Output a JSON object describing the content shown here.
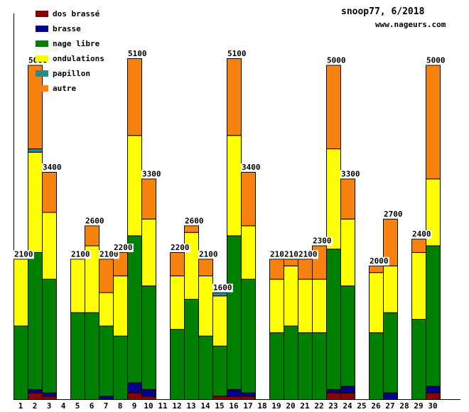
{
  "header": {
    "title": "snoop77, 6/2018",
    "site": "www.nageurs.com"
  },
  "legend": [
    {
      "label": "dos brassé",
      "color": "#8b0000"
    },
    {
      "label": "brasse",
      "color": "#00008b"
    },
    {
      "label": "nage libre",
      "color": "#008000"
    },
    {
      "label": "ondulations",
      "color": "#ffff00"
    },
    {
      "label": "papillon",
      "color": "#1f8f8f"
    },
    {
      "label": "autre",
      "color": "#f8820f"
    }
  ],
  "chart_data": {
    "type": "bar",
    "stacked": true,
    "title": "snoop77, 6/2018",
    "xlabel": "",
    "ylabel": "",
    "ylim": [
      0,
      5770
    ],
    "grid": false,
    "legend_position": "top-left",
    "axis_color": "#000000",
    "label_background": "#ffffff",
    "categories": [
      "1",
      "2",
      "3",
      "4",
      "5",
      "6",
      "7",
      "8",
      "9",
      "10",
      "11",
      "12",
      "13",
      "14",
      "15",
      "16",
      "17",
      "18",
      "19",
      "20",
      "21",
      "22",
      "23",
      "24",
      "25",
      "26",
      "27",
      "28",
      "29",
      "30"
    ],
    "totals": [
      2100,
      5000,
      3400,
      0,
      2100,
      2600,
      2100,
      2200,
      5100,
      3300,
      0,
      2200,
      2600,
      2100,
      1600,
      5100,
      3400,
      0,
      2100,
      2100,
      2100,
      2300,
      5000,
      3300,
      0,
      2000,
      2700,
      0,
      2400,
      5000
    ],
    "series": [
      {
        "name": "dos brassé",
        "color": "#8b0000",
        "values": [
          0,
          100,
          50,
          0,
          0,
          0,
          0,
          0,
          100,
          50,
          0,
          0,
          0,
          0,
          50,
          50,
          50,
          0,
          0,
          0,
          0,
          0,
          100,
          100,
          0,
          0,
          0,
          0,
          0,
          100
        ]
      },
      {
        "name": "brasse",
        "color": "#00008b",
        "values": [
          0,
          50,
          50,
          0,
          0,
          0,
          50,
          0,
          150,
          100,
          0,
          0,
          0,
          0,
          0,
          100,
          50,
          0,
          0,
          0,
          0,
          0,
          50,
          100,
          0,
          0,
          100,
          0,
          0,
          100
        ]
      },
      {
        "name": "nage libre",
        "color": "#008000",
        "values": [
          1100,
          2050,
          1700,
          0,
          1300,
          1300,
          1050,
          950,
          2200,
          1550,
          0,
          1050,
          1500,
          950,
          750,
          2300,
          1700,
          0,
          1000,
          1100,
          1000,
          1000,
          2100,
          1500,
          0,
          1000,
          1200,
          0,
          1200,
          2100
        ]
      },
      {
        "name": "ondulations",
        "color": "#ffff00",
        "values": [
          1000,
          1500,
          1000,
          0,
          800,
          1000,
          500,
          900,
          1500,
          1000,
          0,
          800,
          1000,
          900,
          750,
          1500,
          800,
          0,
          800,
          900,
          800,
          800,
          1500,
          1000,
          0,
          900,
          700,
          0,
          1000,
          1000
        ]
      },
      {
        "name": "papillon",
        "color": "#1f8f8f",
        "values": [
          0,
          50,
          0,
          0,
          0,
          0,
          0,
          0,
          0,
          0,
          0,
          0,
          0,
          0,
          50,
          0,
          0,
          0,
          0,
          0,
          0,
          0,
          0,
          0,
          0,
          0,
          0,
          0,
          0,
          0
        ]
      },
      {
        "name": "autre",
        "color": "#f8820f",
        "values": [
          0,
          1250,
          600,
          0,
          0,
          300,
          500,
          350,
          1150,
          600,
          0,
          350,
          100,
          250,
          0,
          1150,
          800,
          0,
          300,
          100,
          300,
          500,
          1250,
          600,
          0,
          100,
          700,
          0,
          200,
          1700
        ]
      }
    ]
  }
}
